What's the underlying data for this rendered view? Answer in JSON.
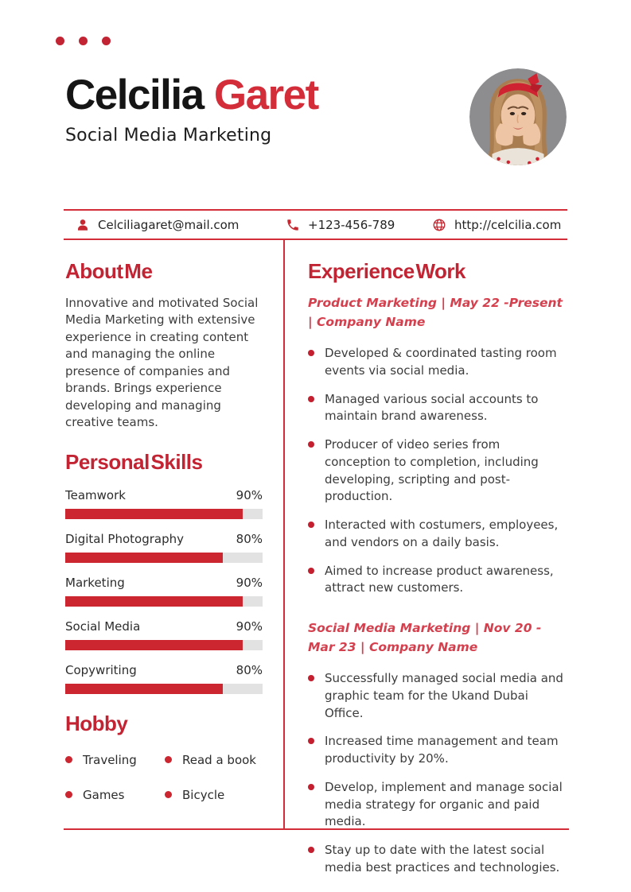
{
  "accent": {
    "primary": "#c22433",
    "name_red": "#d42d3a",
    "job_red": "#d4404e",
    "bar_red": "#cc2631",
    "track_gray": "#e2e2e2"
  },
  "header": {
    "first_name": "Celcilia",
    "last_name": "Garet",
    "subtitle": "Social Media Marketing",
    "photo": "woman-portrait-red-headband"
  },
  "contact": {
    "email": {
      "icon": "person-icon",
      "value": "Celciliagaret@mail.com"
    },
    "phone": {
      "icon": "phone-icon",
      "value": "+123-456-789"
    },
    "website": {
      "icon": "globe-icon",
      "value": "http://celcilia.com"
    }
  },
  "about": {
    "title": "About Me",
    "text": "Innovative and motivated Social Media Marketing with extensive experience in creating content and managing the online presence of companies and brands. Brings experience developing and managing creative teams."
  },
  "skills": {
    "title": "Personal Skills",
    "items": [
      {
        "label": "Teamwork",
        "percent": "90%",
        "value": 90
      },
      {
        "label": "Digital Photography",
        "percent": "80%",
        "value": 80
      },
      {
        "label": "Marketing",
        "percent": "90%",
        "value": 90
      },
      {
        "label": "Social Media",
        "percent": "90%",
        "value": 90
      },
      {
        "label": "Copywriting",
        "percent": "80%",
        "value": 80
      }
    ]
  },
  "hobby": {
    "title": "Hobby",
    "items": [
      "Traveling",
      "Read a book",
      "Games",
      "Bicycle"
    ]
  },
  "experience": {
    "title": "Experience Work",
    "jobs": [
      {
        "heading": "Product Marketing | May 22 -Present | Company Name",
        "bullets": [
          "Developed & coordinated tasting room events via social media.",
          "Managed various social accounts to maintain brand awareness.",
          "Producer of video series from conception to completion, including developing, scripting and post-production.",
          "Interacted with costumers, employees, and vendors on a daily basis.",
          "Aimed to increase product awareness, attract new customers."
        ]
      },
      {
        "heading": "Social Media Marketing | Nov 20 - Mar 23 | Company Name",
        "bullets": [
          "Successfully managed social media and graphic team for the Ukand Dubai Office.",
          "Increased time management and team productivity by 20%.",
          "Develop, implement and manage social media strategy for organic and paid media.",
          "Stay up to date with the latest social media best practices and technologies."
        ]
      }
    ]
  }
}
